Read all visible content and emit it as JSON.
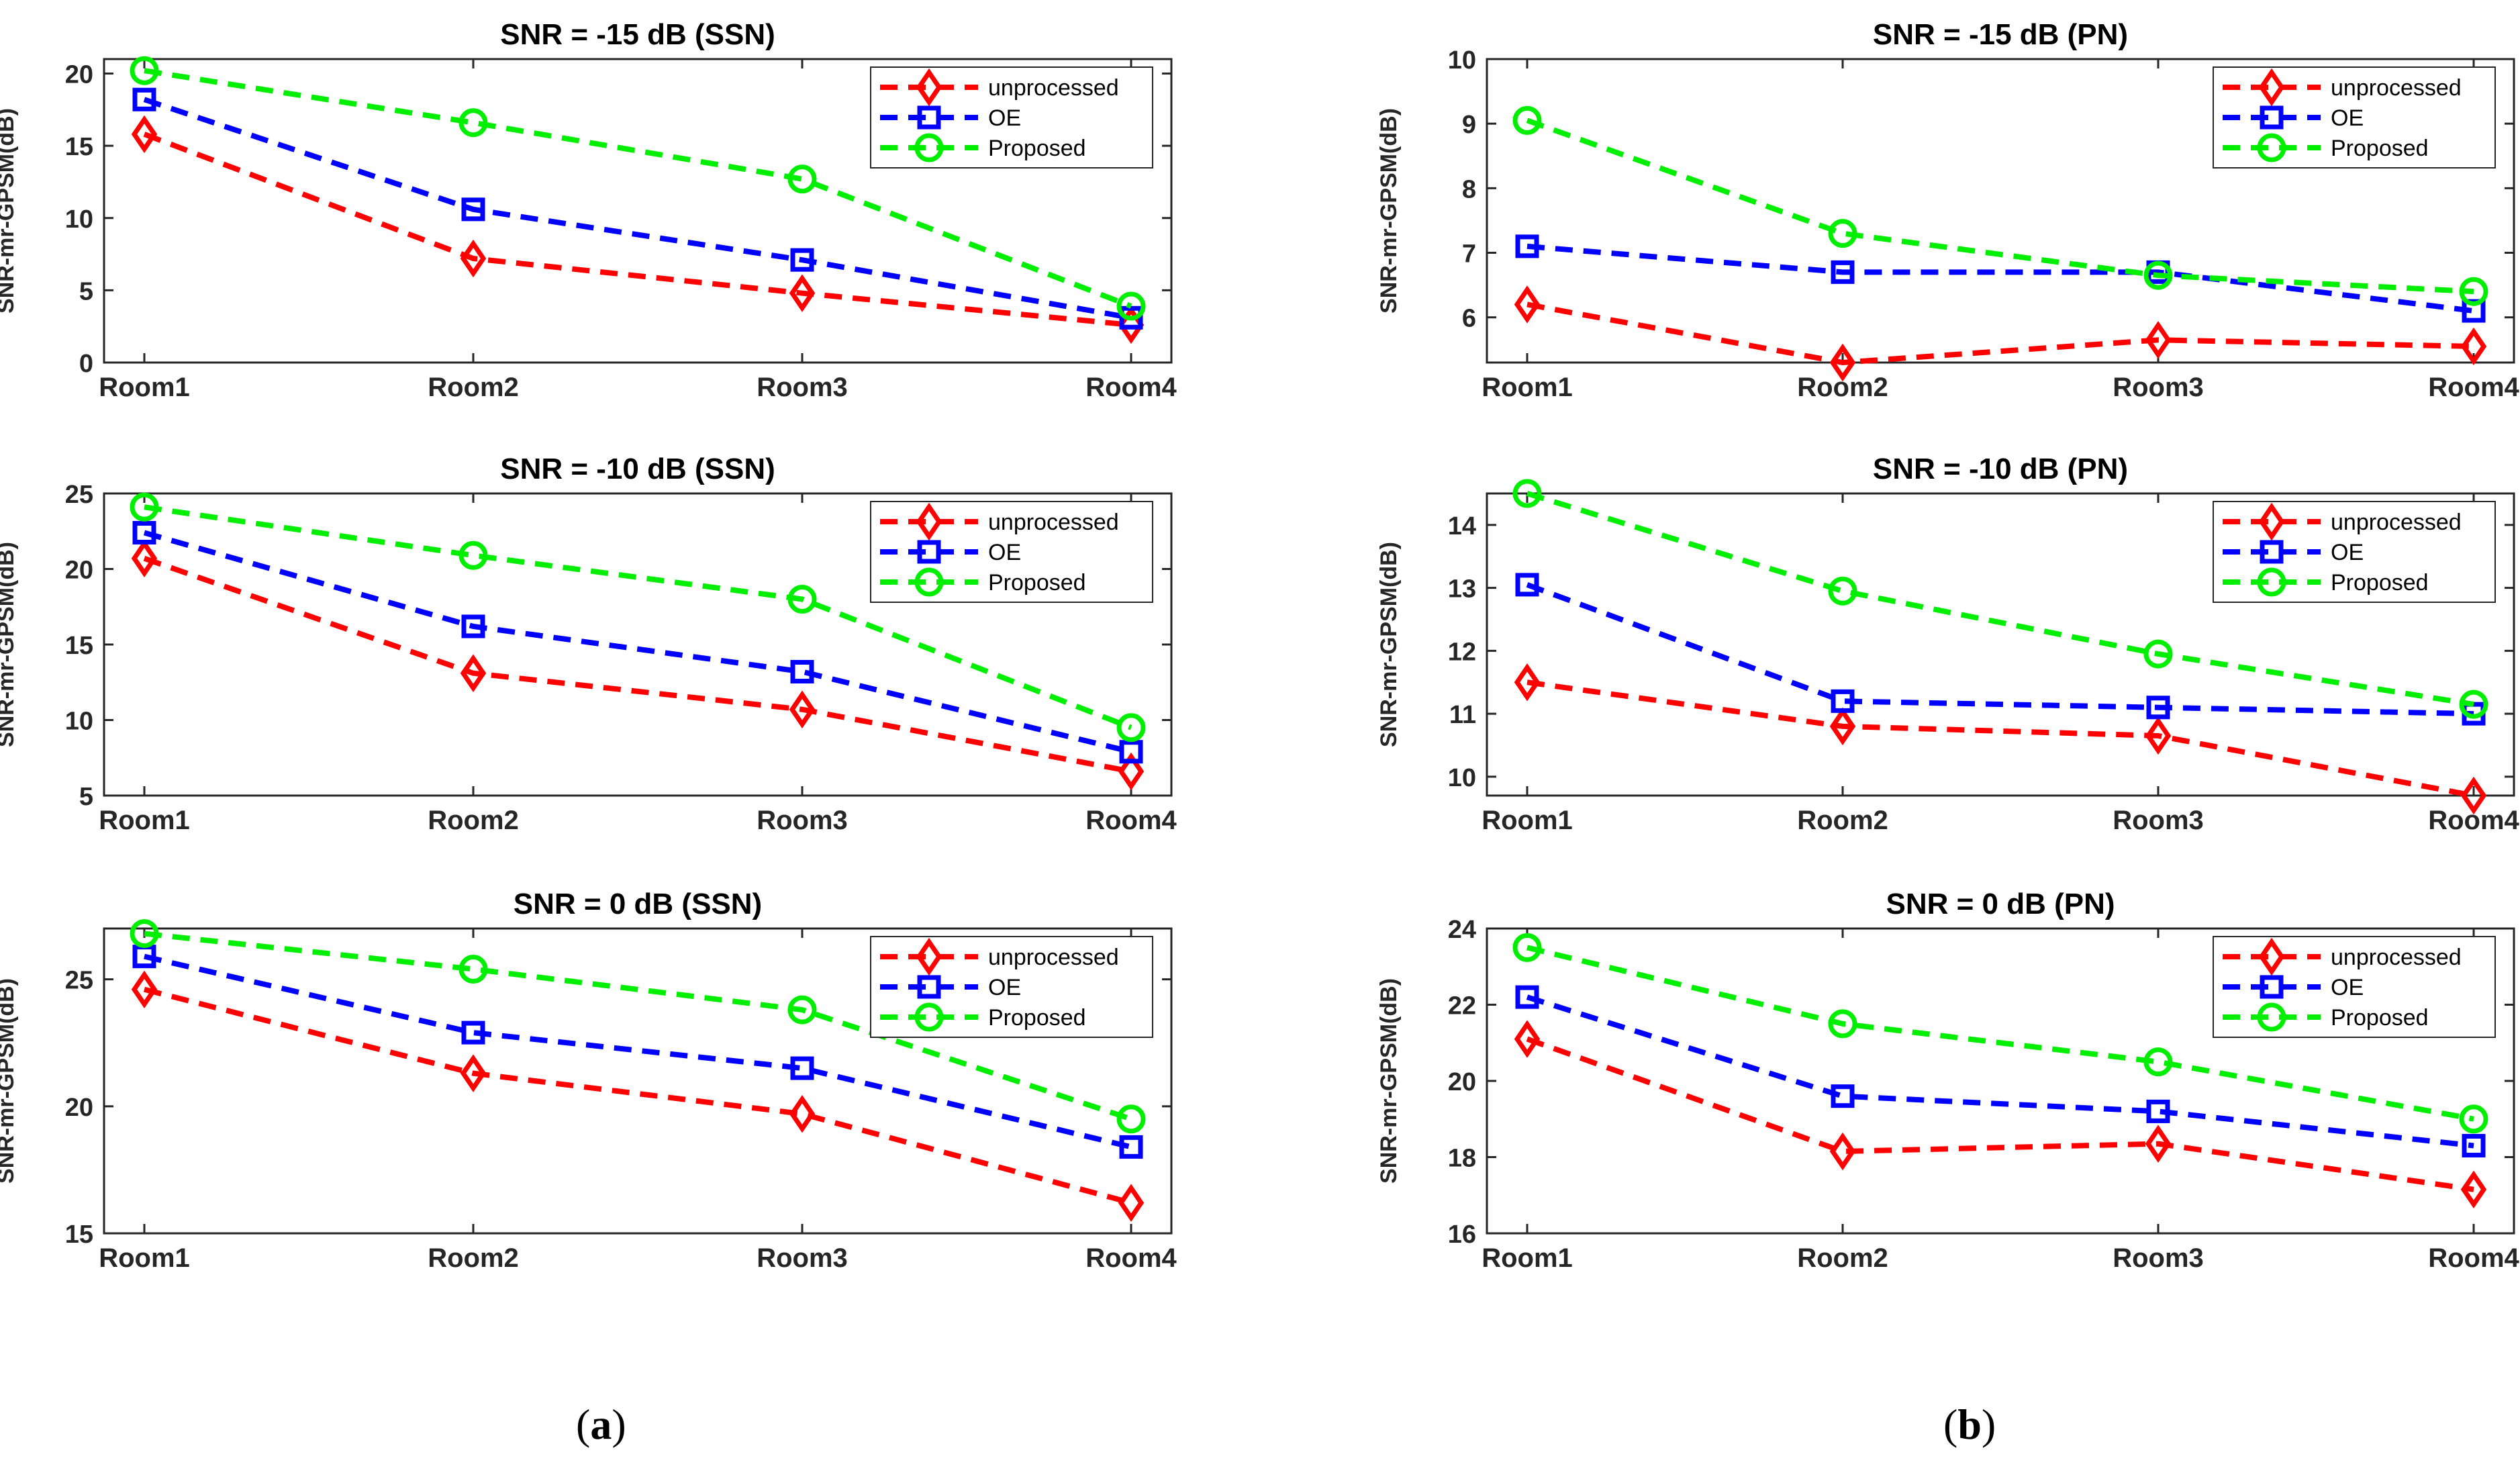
{
  "colors": {
    "unprocessed": "#ff0000",
    "oe": "#0000ff",
    "proposed": "#00ee00",
    "axis": "#262626",
    "grid_text": "#262626"
  },
  "legend_labels": [
    "unprocessed",
    "OE",
    "Proposed"
  ],
  "captions": {
    "a": "a",
    "b": "b"
  },
  "chart_data": [
    {
      "type": "line",
      "panel": "a",
      "title": "SNR = -15 dB (SSN)",
      "xlabel": "",
      "ylabel": "SNR-mr-GPSM(dB)",
      "categories": [
        "Room1",
        "Room2",
        "Room3",
        "Room4"
      ],
      "ylim": [
        0,
        21
      ],
      "yticks": [
        0,
        5,
        10,
        15,
        20
      ],
      "series": [
        {
          "name": "unprocessed",
          "values": [
            15.8,
            7.2,
            4.8,
            2.6
          ]
        },
        {
          "name": "OE",
          "values": [
            18.2,
            10.6,
            7.1,
            3.1
          ]
        },
        {
          "name": "Proposed",
          "values": [
            20.2,
            16.6,
            12.7,
            3.9
          ]
        }
      ],
      "legend": "top-right"
    },
    {
      "type": "line",
      "panel": "b",
      "title": "SNR = -15 dB (PN)",
      "xlabel": "",
      "ylabel": "SNR-mr-GPSM(dB)",
      "categories": [
        "Room1",
        "Room2",
        "Room3",
        "Room4"
      ],
      "ylim": [
        5.3,
        10
      ],
      "yticks": [
        6,
        7,
        8,
        9,
        10
      ],
      "series": [
        {
          "name": "unprocessed",
          "values": [
            6.2,
            5.3,
            5.65,
            5.55
          ]
        },
        {
          "name": "OE",
          "values": [
            7.1,
            6.7,
            6.7,
            6.1
          ]
        },
        {
          "name": "Proposed",
          "values": [
            9.05,
            7.3,
            6.65,
            6.4
          ]
        }
      ],
      "legend": "top-right"
    },
    {
      "type": "line",
      "panel": "a",
      "title": "SNR = -10 dB (SSN)",
      "xlabel": "",
      "ylabel": "SNR-mr-GPSM(dB)",
      "categories": [
        "Room1",
        "Room2",
        "Room3",
        "Room4"
      ],
      "ylim": [
        5,
        25
      ],
      "yticks": [
        5,
        10,
        15,
        20,
        25
      ],
      "series": [
        {
          "name": "unprocessed",
          "values": [
            20.7,
            13.1,
            10.7,
            6.6
          ]
        },
        {
          "name": "OE",
          "values": [
            22.4,
            16.2,
            13.2,
            7.9
          ]
        },
        {
          "name": "Proposed",
          "values": [
            24.1,
            20.9,
            18.0,
            9.5
          ]
        }
      ],
      "legend": "top-right"
    },
    {
      "type": "line",
      "panel": "b",
      "title": "SNR = -10 dB (PN)",
      "xlabel": "",
      "ylabel": "SNR-mr-GPSM(dB)",
      "categories": [
        "Room1",
        "Room2",
        "Room3",
        "Room4"
      ],
      "ylim": [
        9.7,
        14.5
      ],
      "yticks": [
        10,
        11,
        12,
        13,
        14
      ],
      "series": [
        {
          "name": "unprocessed",
          "values": [
            11.5,
            10.8,
            10.65,
            9.7
          ]
        },
        {
          "name": "OE",
          "values": [
            13.05,
            11.2,
            11.1,
            11.0
          ]
        },
        {
          "name": "Proposed",
          "values": [
            14.5,
            12.95,
            11.95,
            11.15
          ]
        }
      ],
      "legend": "top-right"
    },
    {
      "type": "line",
      "panel": "a",
      "title": "SNR = 0 dB (SSN)",
      "xlabel": "",
      "ylabel": "SNR-mr-GPSM(dB)",
      "categories": [
        "Room1",
        "Room2",
        "Room3",
        "Room4"
      ],
      "ylim": [
        15,
        27
      ],
      "yticks": [
        15,
        20,
        25
      ],
      "series": [
        {
          "name": "unprocessed",
          "values": [
            24.6,
            21.3,
            19.7,
            16.2
          ]
        },
        {
          "name": "OE",
          "values": [
            25.9,
            22.9,
            21.5,
            18.4
          ]
        },
        {
          "name": "Proposed",
          "values": [
            26.8,
            25.4,
            23.8,
            19.5
          ]
        }
      ],
      "legend": "top-right"
    },
    {
      "type": "line",
      "panel": "b",
      "title": "SNR = 0 dB (PN)",
      "xlabel": "",
      "ylabel": "SNR-mr-GPSM(dB)",
      "categories": [
        "Room1",
        "Room2",
        "Room3",
        "Room4"
      ],
      "ylim": [
        16,
        24
      ],
      "yticks": [
        16,
        18,
        20,
        22,
        24
      ],
      "series": [
        {
          "name": "unprocessed",
          "values": [
            21.1,
            18.15,
            18.35,
            17.15
          ]
        },
        {
          "name": "OE",
          "values": [
            22.2,
            19.6,
            19.2,
            18.3
          ]
        },
        {
          "name": "Proposed",
          "values": [
            23.5,
            21.5,
            20.5,
            19.0
          ]
        }
      ],
      "legend": "top-right"
    }
  ]
}
